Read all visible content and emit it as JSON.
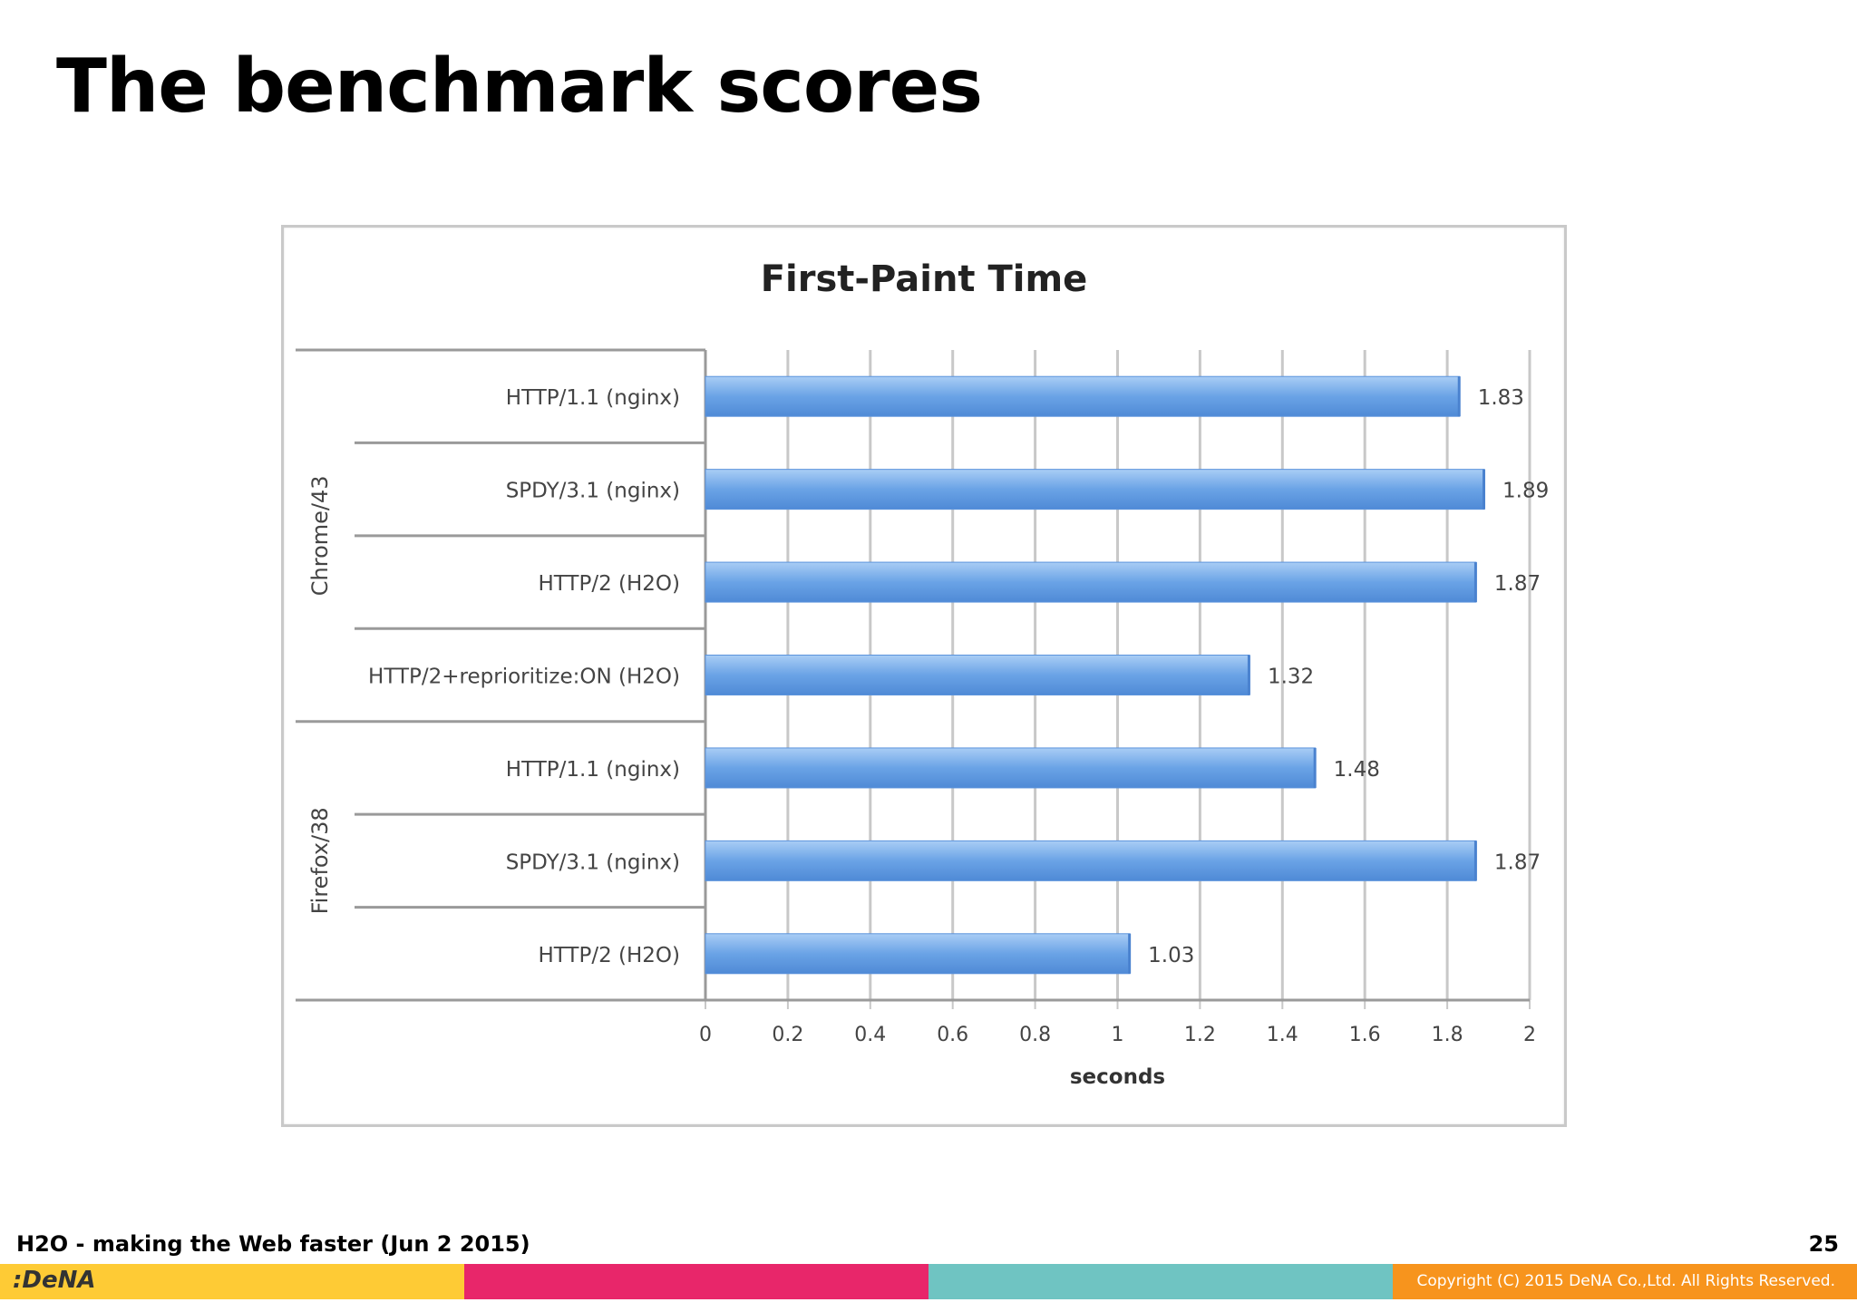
{
  "slide": {
    "title": "The benchmark scores",
    "footer": "H2O - making the Web faster (Jun 2 2015)",
    "page_number": "25",
    "logo_text": ":DeNA",
    "copyright": "Copyright (C) 2015 DeNA Co.,Ltd. All Rights Reserved.",
    "bar_colors": [
      "#fecb35",
      "#e8266a",
      "#6fc4c2",
      "#f7941d"
    ]
  },
  "chart_data": {
    "type": "bar",
    "orientation": "horizontal",
    "title": "First-Paint Time",
    "xlabel": "seconds",
    "ylabel": "",
    "xlim": [
      0,
      2
    ],
    "xticks": [
      "0",
      "0.2",
      "0.4",
      "0.6",
      "0.8",
      "1",
      "1.2",
      "1.4",
      "1.6",
      "1.8",
      "2"
    ],
    "grid": true,
    "bar_color": "#6aa3e6",
    "groups": [
      {
        "name": "Chrome/43",
        "categories": [
          "HTTP/1.1 (nginx)",
          "SPDY/3.1 (nginx)",
          "HTTP/2 (H2O)",
          "HTTP/2+reprioritize:ON (H2O)"
        ],
        "values": [
          1.83,
          1.89,
          1.87,
          1.32
        ],
        "labels": [
          "1.83",
          "1.89",
          "1.87",
          "1.32"
        ]
      },
      {
        "name": "Firefox/38",
        "categories": [
          "HTTP/1.1 (nginx)",
          "SPDY/3.1 (nginx)",
          "HTTP/2 (H2O)"
        ],
        "values": [
          1.48,
          1.87,
          1.03
        ],
        "labels": [
          "1.48",
          "1.87",
          "1.03"
        ]
      }
    ]
  }
}
